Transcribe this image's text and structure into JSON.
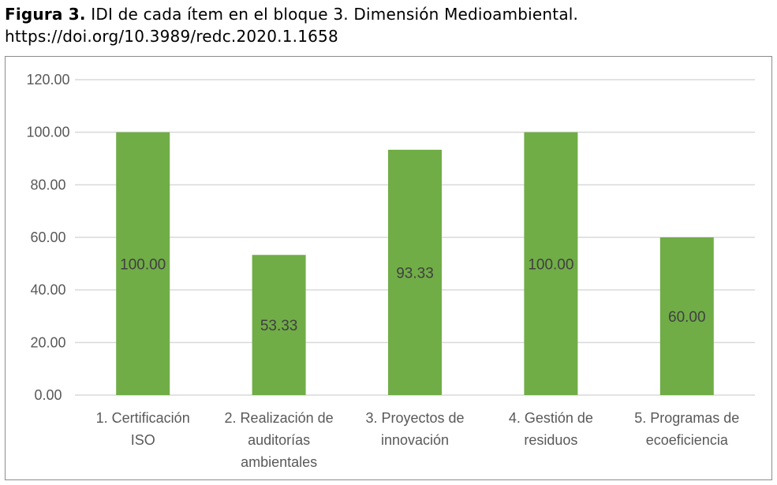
{
  "caption": {
    "label": "Figura 3.",
    "text": " IDI de cada ítem en el bloque 3. Dimensión Medioambiental.",
    "doi": "https://doi.org/10.3989/redc.2020.1.1658"
  },
  "chart_data": {
    "type": "bar",
    "categories": [
      [
        "1. Certificación",
        "ISO"
      ],
      [
        "2. Realización de",
        "auditorías",
        "ambientales"
      ],
      [
        "3. Proyectos de",
        "innovación"
      ],
      [
        "4. Gestión de",
        "residuos"
      ],
      [
        "5. Programas de",
        "ecoeficiencia"
      ]
    ],
    "values": [
      100.0,
      53.33,
      93.33,
      100.0,
      60.0
    ],
    "data_labels": [
      "100.00",
      "53.33",
      "93.33",
      "100.00",
      "60.00"
    ],
    "y_ticks": [
      "0.00",
      "20.00",
      "40.00",
      "60.00",
      "80.00",
      "100.00",
      "120.00"
    ],
    "ylim": [
      0,
      120
    ],
    "grid": true,
    "legend": "none",
    "colors": {
      "bar": "#70ad47",
      "grid": "#d9d9d9"
    }
  }
}
